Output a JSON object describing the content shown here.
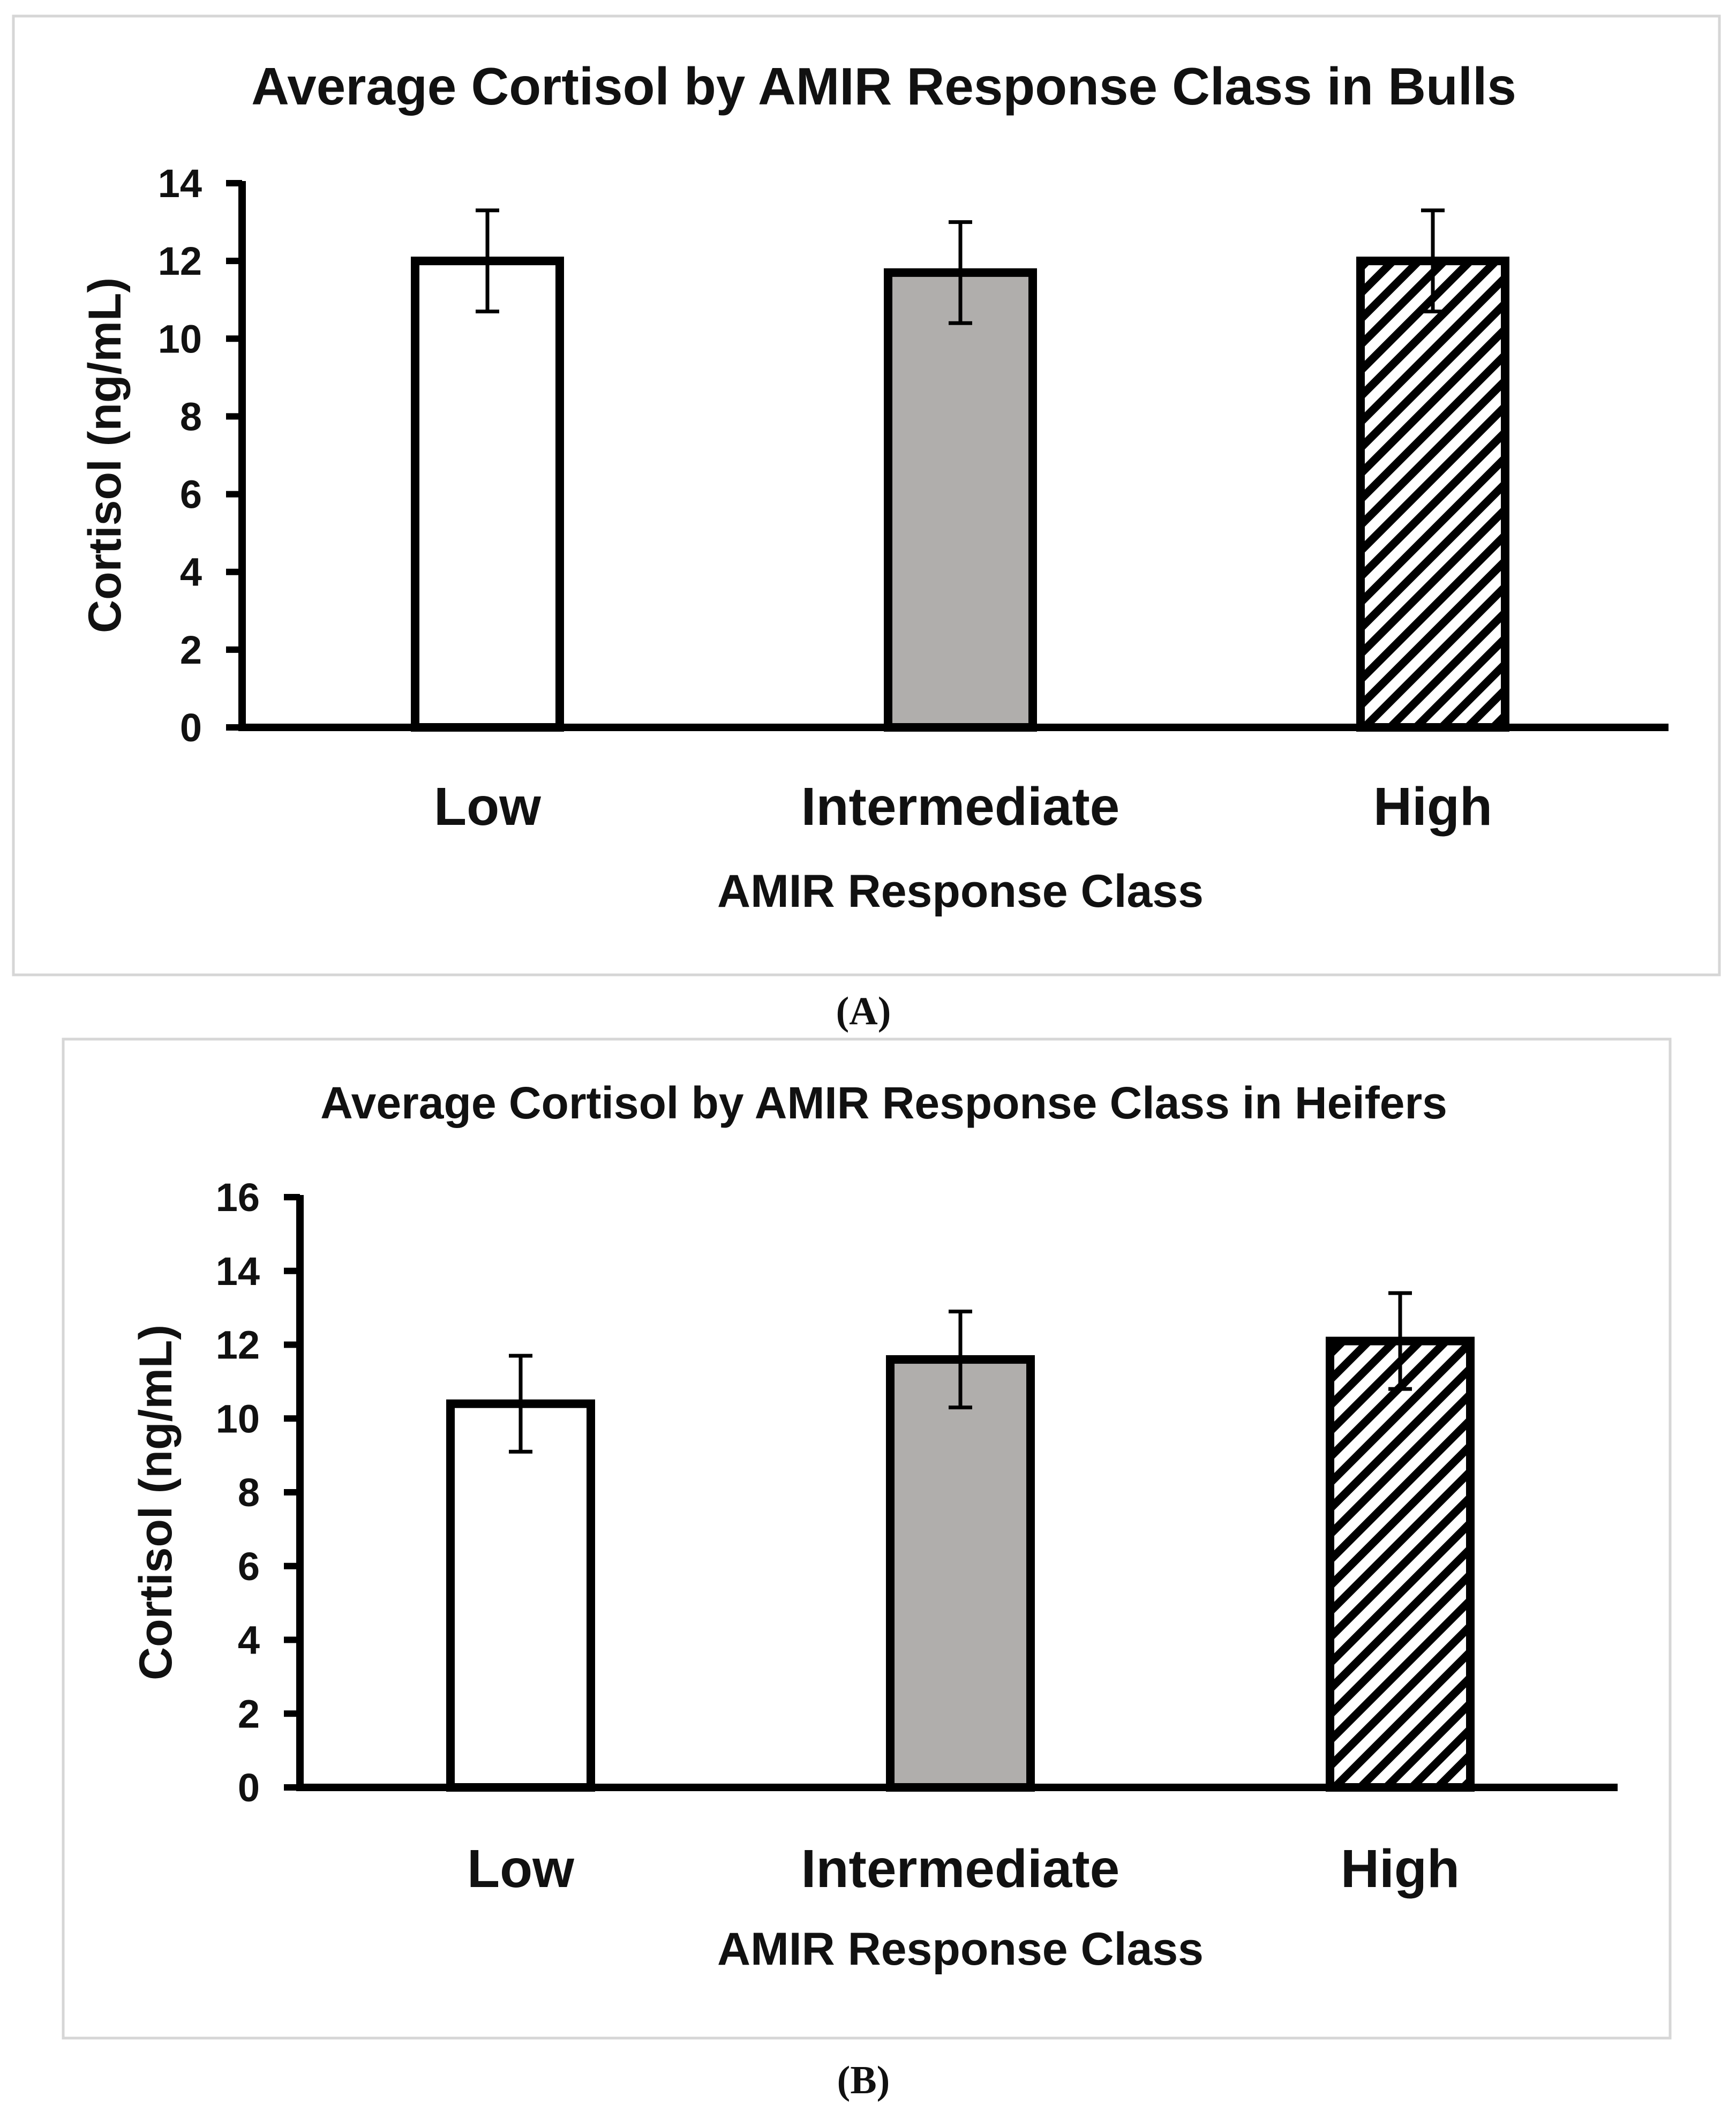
{
  "chart_data": [
    {
      "type": "bar",
      "panel": "(A)",
      "title": "Average Cortisol by AMIR Response Class in Bulls",
      "xlabel": "AMIR Response Class",
      "ylabel": "Cortisol (ng/mL)",
      "ylim": [
        0,
        14
      ],
      "yticks": [
        "0",
        "2",
        "4",
        "6",
        "8",
        "10",
        "12",
        "14"
      ],
      "categories": [
        "Low",
        "Intermediate",
        "High"
      ],
      "values": [
        12.0,
        11.7,
        12.0
      ],
      "errors": [
        1.3,
        1.3,
        1.3
      ],
      "fills": [
        "white",
        "gray",
        "hatch"
      ],
      "colors": {
        "gray": "#b0aeac",
        "stroke": "#000000",
        "white": "#ffffff"
      },
      "grid": false
    },
    {
      "type": "bar",
      "panel": "(B)",
      "title": "Average Cortisol by AMIR Response Class in Heifers",
      "xlabel": "AMIR Response Class",
      "ylabel": "Cortisol (ng/mL)",
      "ylim": [
        0,
        16
      ],
      "yticks": [
        "0",
        "2",
        "4",
        "6",
        "8",
        "10",
        "12",
        "14",
        "16"
      ],
      "categories": [
        "Low",
        "Intermediate",
        "High"
      ],
      "values": [
        10.4,
        11.6,
        12.1
      ],
      "errors": [
        1.3,
        1.3,
        1.3
      ],
      "fills": [
        "white",
        "gray",
        "hatch"
      ],
      "colors": {
        "gray": "#b0aeac",
        "stroke": "#000000",
        "white": "#ffffff"
      },
      "grid": false
    }
  ]
}
